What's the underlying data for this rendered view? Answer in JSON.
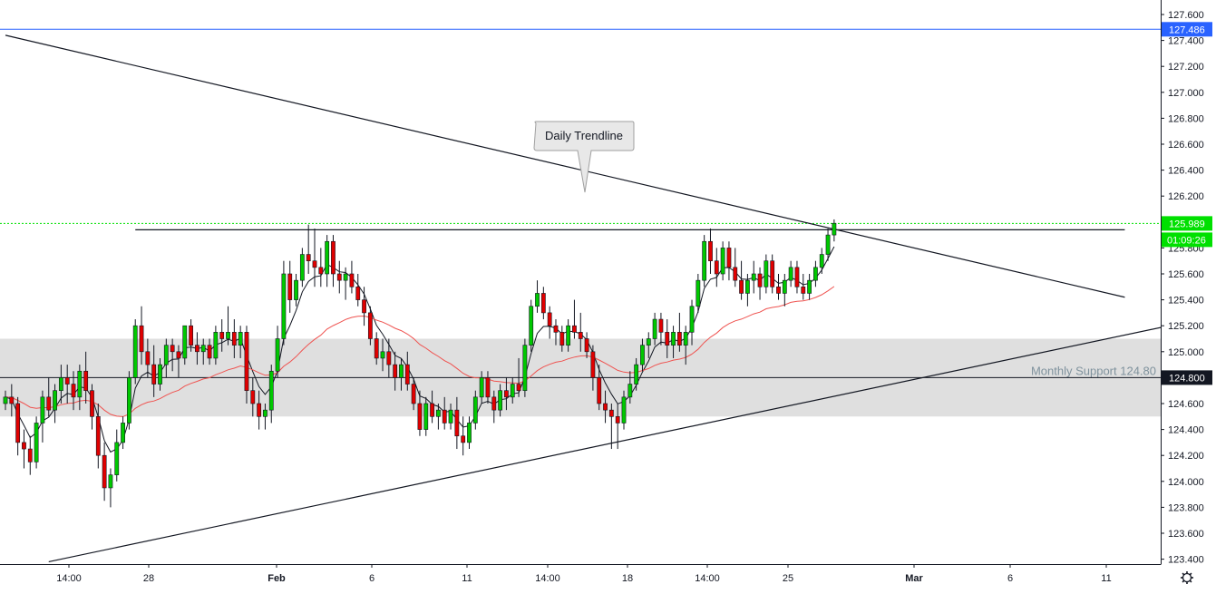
{
  "chart_data": {
    "type": "candlestick",
    "y_axis": {
      "position": "right",
      "range": [
        123.3,
        127.7
      ],
      "ticks": [
        "123.400",
        "123.600",
        "123.800",
        "124.000",
        "124.200",
        "124.400",
        "124.600",
        "124.800",
        "125.000",
        "125.200",
        "125.400",
        "125.600",
        "125.800",
        "126.000",
        "126.200",
        "126.400",
        "126.600",
        "126.800",
        "127.000",
        "127.200",
        "127.400",
        "127.600"
      ]
    },
    "x_axis": {
      "labels": [
        {
          "text": "14:00",
          "bold": false
        },
        {
          "text": "28",
          "bold": false
        },
        {
          "text": "Feb",
          "bold": true
        },
        {
          "text": "6",
          "bold": false
        },
        {
          "text": "11",
          "bold": false
        },
        {
          "text": "14:00",
          "bold": false
        },
        {
          "text": "18",
          "bold": false
        },
        {
          "text": "14:00",
          "bold": false
        },
        {
          "text": "25",
          "bold": false
        },
        {
          "text": "Mar",
          "bold": true
        },
        {
          "text": "6",
          "bold": false
        },
        {
          "text": "11",
          "bold": false
        }
      ]
    },
    "price_tags": [
      {
        "value": "127.486",
        "label": "127.486",
        "color": "#2962ff",
        "line": "solid"
      },
      {
        "value": "125.989",
        "label": "125.989",
        "color": "#00e000",
        "line": "dotted"
      },
      {
        "value": "124.800",
        "label": "124.800",
        "color": "#131722",
        "line": "solid"
      }
    ],
    "countdown": {
      "label": "01:09:26",
      "color": "#00e000"
    },
    "zones": [
      {
        "name": "Monthly Support 124.80",
        "label": "Monthly Support 124.80",
        "from": 124.5,
        "to": 125.1,
        "color": "#d9d9d9"
      }
    ],
    "annotations": [
      {
        "label": "Daily Trendline",
        "type": "callout"
      }
    ],
    "trendlines": [
      {
        "from": [
          0,
          127.44
        ],
        "to": [
          181,
          125.42
        ]
      },
      {
        "from": [
          7,
          123.38
        ],
        "to": [
          218,
          125.5
        ]
      },
      {
        "from": [
          21,
          125.94
        ],
        "to": [
          181,
          125.94
        ]
      }
    ],
    "colors": {
      "up": "#00c800",
      "down": "#e00000",
      "ema_fast": "#131722",
      "ema_slow": "#ef5350"
    },
    "ohlc": [
      [
        124.6,
        124.7,
        124.55,
        124.65
      ],
      [
        124.65,
        124.75,
        124.5,
        124.6
      ],
      [
        124.6,
        124.65,
        124.2,
        124.3
      ],
      [
        124.3,
        124.4,
        124.1,
        124.25
      ],
      [
        124.25,
        124.35,
        124.05,
        124.15
      ],
      [
        124.15,
        124.5,
        124.1,
        124.45
      ],
      [
        124.45,
        124.7,
        124.3,
        124.65
      ],
      [
        124.65,
        124.8,
        124.5,
        124.55
      ],
      [
        124.55,
        124.75,
        124.45,
        124.7
      ],
      [
        124.7,
        124.9,
        124.6,
        124.8
      ],
      [
        124.8,
        124.9,
        124.6,
        124.75
      ],
      [
        124.75,
        124.85,
        124.55,
        124.65
      ],
      [
        124.65,
        124.9,
        124.55,
        124.85
      ],
      [
        124.85,
        125.0,
        124.6,
        124.7
      ],
      [
        124.7,
        124.75,
        124.4,
        124.5
      ],
      [
        124.5,
        124.6,
        124.1,
        124.2
      ],
      [
        124.2,
        124.3,
        123.85,
        123.95
      ],
      [
        123.95,
        124.1,
        123.8,
        124.05
      ],
      [
        124.05,
        124.4,
        124.0,
        124.3
      ],
      [
        124.3,
        124.5,
        124.25,
        124.45
      ],
      [
        124.45,
        124.85,
        124.4,
        124.8
      ],
      [
        124.8,
        125.25,
        124.75,
        125.2
      ],
      [
        125.2,
        125.35,
        124.9,
        125.0
      ],
      [
        125.0,
        125.1,
        124.8,
        124.9
      ],
      [
        124.9,
        125.05,
        124.65,
        124.75
      ],
      [
        124.75,
        124.95,
        124.7,
        124.9
      ],
      [
        124.9,
        125.1,
        124.8,
        125.05
      ],
      [
        125.05,
        125.1,
        124.85,
        125.0
      ],
      [
        125.0,
        125.05,
        124.8,
        124.95
      ],
      [
        124.95,
        125.2,
        124.9,
        125.2
      ],
      [
        125.2,
        125.25,
        125.0,
        125.05
      ],
      [
        125.05,
        125.15,
        124.9,
        125.0
      ],
      [
        125.0,
        125.1,
        124.9,
        125.05
      ],
      [
        125.05,
        125.1,
        124.9,
        124.95
      ],
      [
        124.95,
        125.2,
        124.9,
        125.15
      ],
      [
        125.15,
        125.25,
        125.0,
        125.1
      ],
      [
        125.1,
        125.35,
        125.05,
        125.15
      ],
      [
        125.15,
        125.25,
        124.95,
        125.05
      ],
      [
        125.05,
        125.2,
        124.95,
        125.15
      ],
      [
        125.15,
        125.2,
        124.6,
        124.7
      ],
      [
        124.7,
        124.8,
        124.5,
        124.6
      ],
      [
        124.6,
        124.7,
        124.4,
        124.5
      ],
      [
        124.5,
        124.6,
        124.4,
        124.55
      ],
      [
        124.55,
        124.9,
        124.45,
        124.85
      ],
      [
        124.85,
        125.2,
        124.8,
        125.1
      ],
      [
        125.1,
        125.7,
        125.05,
        125.6
      ],
      [
        125.6,
        125.7,
        125.3,
        125.4
      ],
      [
        125.4,
        125.6,
        125.35,
        125.55
      ],
      [
        125.55,
        125.8,
        125.5,
        125.75
      ],
      [
        125.75,
        125.98,
        125.6,
        125.7
      ],
      [
        125.7,
        125.95,
        125.5,
        125.65
      ],
      [
        125.65,
        125.8,
        125.5,
        125.6
      ],
      [
        125.6,
        125.9,
        125.5,
        125.85
      ],
      [
        125.85,
        125.9,
        125.5,
        125.6
      ],
      [
        125.6,
        125.7,
        125.45,
        125.55
      ],
      [
        125.55,
        125.65,
        125.4,
        125.6
      ],
      [
        125.6,
        125.7,
        125.45,
        125.5
      ],
      [
        125.5,
        125.6,
        125.35,
        125.4
      ],
      [
        125.4,
        125.5,
        125.2,
        125.3
      ],
      [
        125.3,
        125.35,
        125.05,
        125.1
      ],
      [
        125.1,
        125.15,
        124.9,
        124.95
      ],
      [
        124.95,
        125.1,
        124.85,
        125.0
      ],
      [
        125.0,
        125.1,
        124.8,
        124.9
      ],
      [
        124.9,
        125.0,
        124.7,
        124.8
      ],
      [
        124.8,
        124.95,
        124.7,
        124.9
      ],
      [
        124.9,
        125.0,
        124.7,
        124.75
      ],
      [
        124.75,
        124.8,
        124.55,
        124.6
      ],
      [
        124.6,
        124.7,
        124.35,
        124.4
      ],
      [
        124.4,
        124.65,
        124.35,
        124.6
      ],
      [
        124.6,
        124.7,
        124.45,
        124.5
      ],
      [
        124.5,
        124.6,
        124.4,
        124.55
      ],
      [
        124.55,
        124.65,
        124.4,
        124.45
      ],
      [
        124.45,
        124.6,
        124.4,
        124.55
      ],
      [
        124.55,
        124.65,
        124.25,
        124.35
      ],
      [
        124.35,
        124.5,
        124.2,
        124.3
      ],
      [
        124.3,
        124.5,
        124.25,
        124.45
      ],
      [
        124.45,
        124.7,
        124.4,
        124.65
      ],
      [
        124.65,
        124.85,
        124.6,
        124.8
      ],
      [
        124.8,
        124.85,
        124.6,
        124.65
      ],
      [
        124.65,
        124.7,
        124.45,
        124.55
      ],
      [
        124.55,
        124.75,
        124.5,
        124.7
      ],
      [
        124.7,
        124.8,
        124.55,
        124.65
      ],
      [
        124.65,
        124.8,
        124.6,
        124.75
      ],
      [
        124.75,
        124.95,
        124.65,
        124.7
      ],
      [
        124.7,
        125.1,
        124.65,
        125.05
      ],
      [
        125.05,
        125.4,
        125.0,
        125.35
      ],
      [
        125.35,
        125.55,
        125.3,
        125.45
      ],
      [
        125.45,
        125.5,
        125.25,
        125.3
      ],
      [
        125.3,
        125.35,
        125.1,
        125.2
      ],
      [
        125.2,
        125.25,
        125.05,
        125.15
      ],
      [
        125.15,
        125.2,
        125.0,
        125.05
      ],
      [
        125.05,
        125.25,
        125.0,
        125.2
      ],
      [
        125.2,
        125.4,
        125.1,
        125.15
      ],
      [
        125.15,
        125.3,
        125.0,
        125.1
      ],
      [
        125.1,
        125.15,
        124.95,
        125.0
      ],
      [
        125.0,
        125.05,
        124.7,
        124.8
      ],
      [
        124.8,
        124.9,
        124.55,
        124.6
      ],
      [
        124.6,
        124.7,
        124.45,
        124.55
      ],
      [
        124.55,
        124.6,
        124.25,
        124.5
      ],
      [
        124.5,
        124.6,
        124.25,
        124.45
      ],
      [
        124.45,
        124.7,
        124.4,
        124.65
      ],
      [
        124.65,
        124.85,
        124.6,
        124.75
      ],
      [
        124.75,
        124.95,
        124.7,
        124.9
      ],
      [
        124.9,
        125.1,
        124.85,
        125.05
      ],
      [
        125.05,
        125.15,
        124.95,
        125.1
      ],
      [
        125.1,
        125.3,
        125.05,
        125.25
      ],
      [
        125.25,
        125.3,
        125.05,
        125.15
      ],
      [
        125.15,
        125.25,
        124.95,
        125.05
      ],
      [
        125.05,
        125.2,
        124.95,
        125.15
      ],
      [
        125.15,
        125.3,
        125.0,
        125.05
      ],
      [
        125.05,
        125.2,
        124.9,
        125.15
      ],
      [
        125.15,
        125.4,
        125.05,
        125.35
      ],
      [
        125.35,
        125.6,
        125.3,
        125.55
      ],
      [
        125.55,
        125.9,
        125.5,
        125.85
      ],
      [
        125.85,
        125.95,
        125.6,
        125.7
      ],
      [
        125.7,
        125.8,
        125.5,
        125.6
      ],
      [
        125.6,
        125.85,
        125.55,
        125.8
      ],
      [
        125.8,
        125.85,
        125.55,
        125.65
      ],
      [
        125.65,
        125.8,
        125.5,
        125.55
      ],
      [
        125.55,
        125.7,
        125.4,
        125.45
      ],
      [
        125.45,
        125.6,
        125.35,
        125.55
      ],
      [
        125.55,
        125.7,
        125.45,
        125.6
      ],
      [
        125.6,
        125.65,
        125.4,
        125.5
      ],
      [
        125.5,
        125.75,
        125.45,
        125.7
      ],
      [
        125.7,
        125.75,
        125.45,
        125.5
      ],
      [
        125.5,
        125.6,
        125.4,
        125.45
      ],
      [
        125.45,
        125.6,
        125.35,
        125.55
      ],
      [
        125.55,
        125.7,
        125.5,
        125.65
      ],
      [
        125.65,
        125.7,
        125.45,
        125.5
      ],
      [
        125.5,
        125.6,
        125.4,
        125.45
      ],
      [
        125.45,
        125.6,
        125.4,
        125.55
      ],
      [
        125.55,
        125.7,
        125.5,
        125.65
      ],
      [
        125.65,
        125.8,
        125.6,
        125.75
      ],
      [
        125.75,
        125.95,
        125.7,
        125.9
      ],
      [
        125.9,
        126.02,
        125.85,
        125.99
      ]
    ]
  },
  "settings_icon": "gear-icon"
}
